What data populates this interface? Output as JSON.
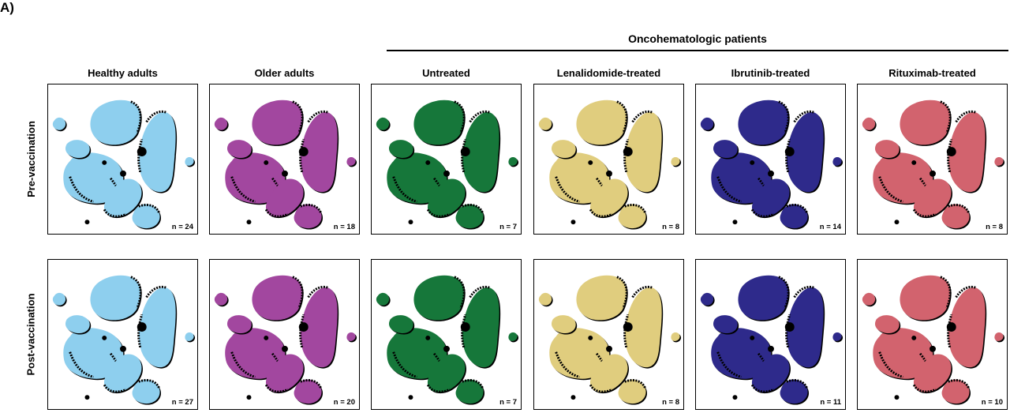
{
  "figure": {
    "panel_letter": "A)",
    "group_title": "Oncohematologic patients"
  },
  "columns": [
    {
      "label": "Healthy adults",
      "color": "#8ecfee"
    },
    {
      "label": "Older adults",
      "color": "#a2479f"
    },
    {
      "label": "Untreated",
      "color": "#16773a"
    },
    {
      "label": "Lenalidomide-treated",
      "color": "#e0cd7e"
    },
    {
      "label": "Ibrutinib-treated",
      "color": "#2e2a8b"
    },
    {
      "label": "Rituximab-treated",
      "color": "#d2636e"
    }
  ],
  "rows": [
    {
      "label": "Pre-vaccination",
      "n": [
        "n = 24",
        "n = 18",
        "n = 7",
        "n = 8",
        "n = 14",
        "n = 8"
      ]
    },
    {
      "label": "Post-vaccination",
      "n": [
        "n = 27",
        "n = 20",
        "n = 7",
        "n = 8",
        "n = 11",
        "n = 10"
      ]
    }
  ],
  "background_color": "#000000"
}
